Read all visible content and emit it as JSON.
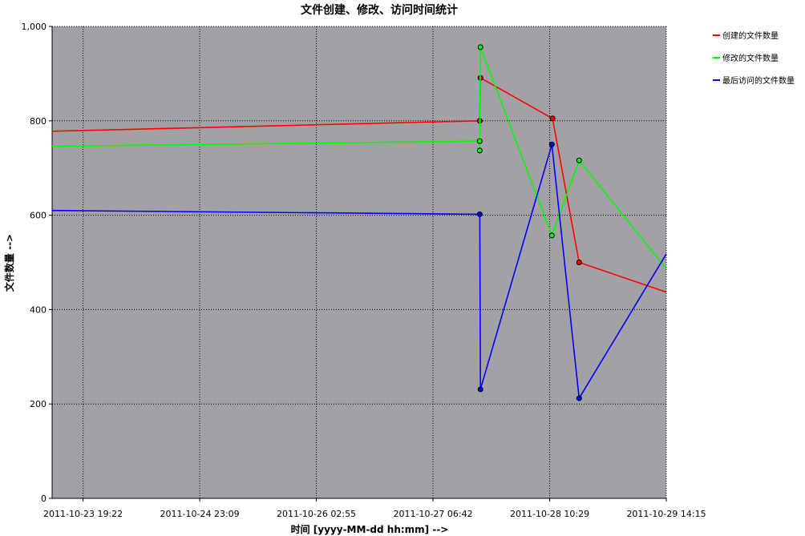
{
  "chart_data": {
    "type": "line",
    "title": "文件创建、修改、访问时间统计",
    "xlabel": "时间 [yyyy-MM-dd hh:mm] -->",
    "ylabel": "文件数量 -->",
    "ylim": [
      0,
      1000
    ],
    "xlim": [
      "2011-10-23 12:00",
      "2011-10-29 14:15"
    ],
    "y_ticks": [
      0,
      200,
      400,
      600,
      800,
      1000
    ],
    "y_tick_labels": [
      "0",
      "200",
      "400",
      "600",
      "800",
      "1,000"
    ],
    "x_ticks": [
      "2011-10-23 19:22",
      "2011-10-24 23:09",
      "2011-10-26 02:55",
      "2011-10-27 06:42",
      "2011-10-28 10:29",
      "2011-10-29 14:15"
    ],
    "grid": true,
    "legend_position": "top-right",
    "plot_background": "#a3a1a6",
    "series": [
      {
        "name": "创建的文件数量",
        "color": "#ff0000",
        "points": [
          {
            "x": "2011-10-23 12:00",
            "y": 778
          },
          {
            "x": "2011-10-27 17:50",
            "y": 800
          },
          {
            "x": "2011-10-27 18:00",
            "y": 891
          },
          {
            "x": "2011-10-28 11:10",
            "y": 805
          },
          {
            "x": "2011-10-28 17:30",
            "y": 500
          },
          {
            "x": "2011-10-29 14:15",
            "y": 437
          }
        ],
        "marked": [
          false,
          true,
          true,
          true,
          true,
          false
        ]
      },
      {
        "name": "修改的文件数量",
        "color": "#00ff00",
        "points": [
          {
            "x": "2011-10-23 12:00",
            "y": 746
          },
          {
            "x": "2011-10-27 17:50",
            "y": 757
          },
          {
            "x": "2011-10-27 17:50",
            "y": 737
          },
          {
            "x": "2011-10-27 18:00",
            "y": 956
          },
          {
            "x": "2011-10-28 11:00",
            "y": 557
          },
          {
            "x": "2011-10-28 17:30",
            "y": 716
          },
          {
            "x": "2011-10-29 14:15",
            "y": 487
          }
        ],
        "marked": [
          false,
          true,
          true,
          true,
          true,
          true,
          false
        ]
      },
      {
        "name": "最后访问的文件数量",
        "color": "#0000ff",
        "points": [
          {
            "x": "2011-10-23 12:00",
            "y": 610
          },
          {
            "x": "2011-10-27 17:50",
            "y": 602
          },
          {
            "x": "2011-10-27 18:00",
            "y": 231
          },
          {
            "x": "2011-10-28 11:00",
            "y": 750
          },
          {
            "x": "2011-10-28 17:30",
            "y": 212
          },
          {
            "x": "2011-10-29 14:15",
            "y": 518
          }
        ],
        "marked": [
          false,
          true,
          true,
          true,
          true,
          false
        ]
      }
    ]
  }
}
